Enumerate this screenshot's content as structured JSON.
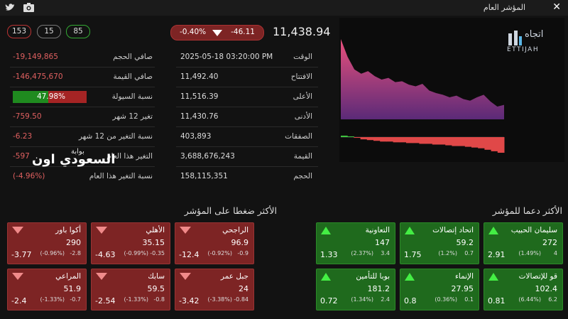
{
  "header": {
    "title": "المؤشر العام",
    "close": "✕"
  },
  "counters": {
    "declining": "153",
    "unchanged": "15",
    "advancing": "85"
  },
  "index": {
    "change_pct": "-0.40%",
    "change": "-46.11",
    "value": "11,438.94"
  },
  "stats_right": [
    {
      "label": "الوقت",
      "value": "2025-05-18 03:20:00 PM"
    },
    {
      "label": "الافتتاح",
      "value": "11,492.40"
    },
    {
      "label": "الأعلى",
      "value": "11,516.39"
    },
    {
      "label": "الأدنى",
      "value": "11,430.76"
    },
    {
      "label": "الصفقات",
      "value": "403,893"
    },
    {
      "label": "القيمة",
      "value": "3,688,676,243"
    },
    {
      "label": "الحجم",
      "value": "158,115,351"
    }
  ],
  "stats_left": [
    {
      "label": "صافي الحجم",
      "value": "-19,149,865"
    },
    {
      "label": "صافي القيمة",
      "value": "-146,475,670"
    },
    {
      "label": "نسبة السيولة",
      "value": 47.98,
      "value_label": "47.98%"
    },
    {
      "label": "تغير 12 شهر",
      "value": "-759.50"
    },
    {
      "label": "نسبة التغير من 12 شهر",
      "value": "-6.23"
    },
    {
      "label": "التغير هذا العام",
      "value": "-597"
    },
    {
      "label": "نسبة التغير هذا العام",
      "value": "(-4.96%)"
    }
  ],
  "watermark": {
    "line1": "بوابة",
    "line2": "السعودي اون"
  },
  "logo": {
    "arabic": "اتجاه",
    "latin": "ETTIJAH"
  },
  "intraday_chart": {
    "index": [
      11516,
      11495,
      11480,
      11475,
      11478,
      11472,
      11468,
      11470,
      11465,
      11466,
      11462,
      11460,
      11463,
      11455,
      11452,
      11450,
      11447,
      11449,
      11445,
      11443,
      11447,
      11450,
      11442,
      11436,
      11438
    ],
    "net_flow": [
      2,
      1,
      -1,
      -3,
      -4,
      -5,
      -6,
      -6,
      -7,
      -7,
      -8,
      -8,
      -9,
      -9,
      -10,
      -10,
      -11,
      -12,
      -12,
      -13,
      -14,
      -15,
      -17,
      -19,
      -21
    ]
  },
  "pressure": {
    "title": "الأكثر ضغطا على المؤشر",
    "cards": [
      {
        "name": "الراجحي",
        "price": "96.9",
        "pct": "(-0.92%)",
        "change": "-0.9",
        "impact": "-12.4"
      },
      {
        "name": "الأهلي",
        "price": "35.15",
        "pct": "(-0.99%)",
        "change": "-0.35",
        "impact": "-4.63"
      },
      {
        "name": "أكوا باور",
        "price": "290",
        "pct": "(-0.96%)",
        "change": "-2.8",
        "impact": "-3.77"
      },
      {
        "name": "جبل عمر",
        "price": "24",
        "pct": "(-3.38%)",
        "change": "-0.84",
        "impact": "-3.42"
      },
      {
        "name": "سابك",
        "price": "59.5",
        "pct": "(-1.33%)",
        "change": "-0.8",
        "impact": "-2.54"
      },
      {
        "name": "المراعي",
        "price": "51.9",
        "pct": "(-1.33%)",
        "change": "-0.7",
        "impact": "-2.4"
      }
    ]
  },
  "support": {
    "title": "الأكثر دعما للمؤشر",
    "cards": [
      {
        "name": "سليمان الحبيب",
        "price": "272",
        "pct": "(1.49%)",
        "change": "4",
        "impact": "2.91"
      },
      {
        "name": "اتحاد إتصالات",
        "price": "59.2",
        "pct": "(1.2%)",
        "change": "0.7",
        "impact": "1.75"
      },
      {
        "name": "التعاونية",
        "price": "147",
        "pct": "(2.37%)",
        "change": "3.4",
        "impact": "1.33"
      },
      {
        "name": "قو للإتصالات",
        "price": "102.4",
        "pct": "(6.44%)",
        "change": "6.2",
        "impact": "0.81"
      },
      {
        "name": "الإنماء",
        "price": "27.95",
        "pct": "(0.36%)",
        "change": "0.1",
        "impact": "0.8"
      },
      {
        "name": "بوبا للتأمين",
        "price": "181.2",
        "pct": "(1.34%)",
        "change": "2.4",
        "impact": "0.72"
      }
    ]
  }
}
